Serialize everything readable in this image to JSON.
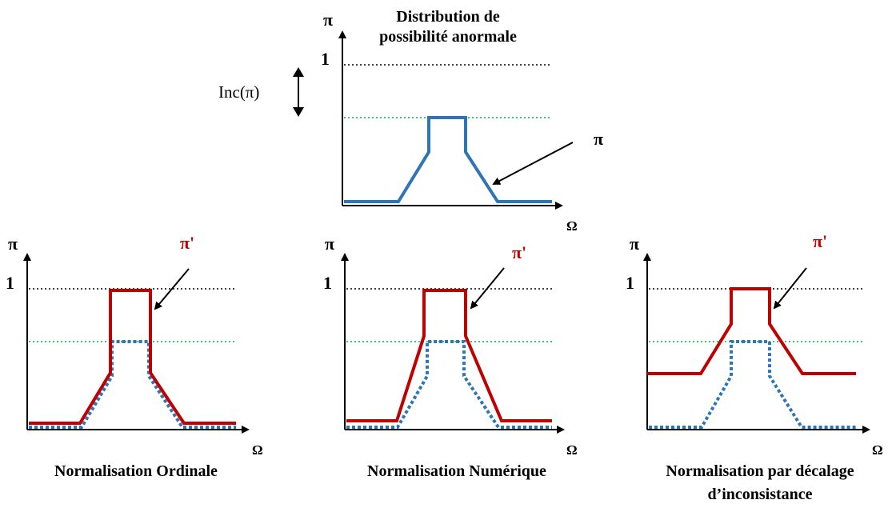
{
  "colors": {
    "axis": "#000000",
    "original_distribution": "#2e75b6",
    "normalized_distribution": "#c00000",
    "level_one_line": "#000000",
    "peak_level_line": "#00b050"
  },
  "top_panel": {
    "title_line1": "Distribution de",
    "title_line2": "possibilité anormale",
    "y_symbol": "π",
    "x_symbol": "Ω",
    "level_one": "1",
    "inconsistency_label": "Inc(π)",
    "curve_label": "π"
  },
  "panels": [
    {
      "caption_line1": "Normalisation Ordinale",
      "caption_line2": "",
      "y_symbol": "π",
      "x_symbol": "Ω",
      "level_one": "1",
      "curve_label": "π'"
    },
    {
      "caption_line1": "Normalisation Numérique",
      "caption_line2": "",
      "y_symbol": "π",
      "x_symbol": "Ω",
      "level_one": "1",
      "curve_label": "π'"
    },
    {
      "caption_line1": "Normalisation par décalage",
      "caption_line2": "d’inconsistance",
      "y_symbol": "π",
      "x_symbol": "Ω",
      "level_one": "1",
      "curve_label": "π'"
    }
  ]
}
